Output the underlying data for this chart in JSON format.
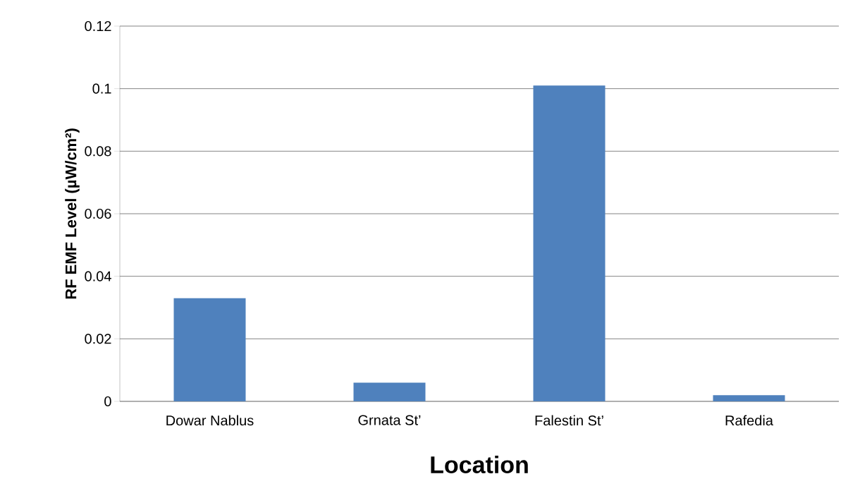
{
  "chart_data": {
    "type": "bar",
    "xlabel": "Location",
    "ylabel": "RF EMF Level (µW/cm²)",
    "categories": [
      "Dowar Nablus",
      "Grnata St’",
      "Falestin St’",
      "Rafedia"
    ],
    "values": [
      0.033,
      0.006,
      0.101,
      0.002
    ],
    "color": "#4f81bd",
    "ylim": [
      0,
      0.12
    ],
    "yticks": [
      0,
      0.02,
      0.04,
      0.06,
      0.08,
      0.1,
      0.12
    ],
    "grid": "y"
  }
}
